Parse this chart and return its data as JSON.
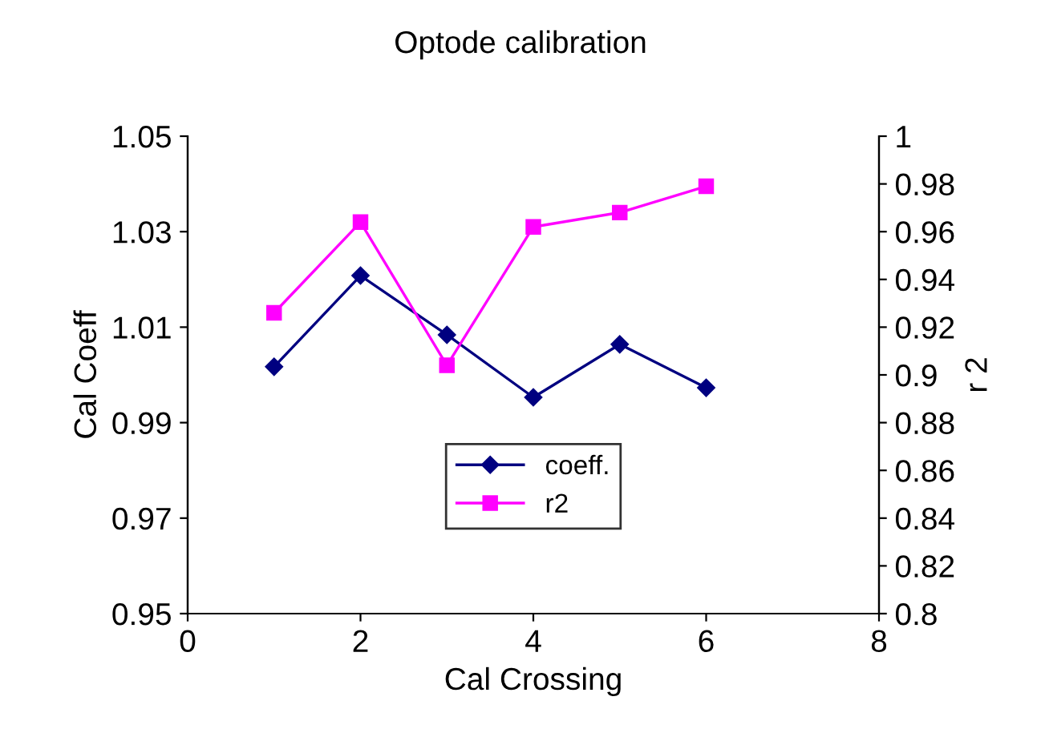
{
  "chart_data": {
    "type": "line",
    "title": "Optode calibration",
    "xlabel": "Cal Crossing",
    "ylabel": "Cal Coeff",
    "y2label": "r 2",
    "x": [
      1,
      2,
      3,
      4,
      5,
      6
    ],
    "series": [
      {
        "name": "coeff.",
        "color": "#000080",
        "marker": "diamond",
        "values": [
          1.0017,
          1.0208,
          1.0084,
          0.9953,
          1.0064,
          0.9973
        ]
      },
      {
        "name": "r2",
        "color": "#ff00ff",
        "marker": "square",
        "axis": "y2",
        "values": [
          0.926,
          0.964,
          0.904,
          0.962,
          0.968,
          0.979
        ]
      }
    ],
    "xlim": [
      0,
      8
    ],
    "xticks": [
      0,
      2,
      4,
      6,
      8
    ],
    "ylim": [
      0.95,
      1.05
    ],
    "yticks": [
      {
        "value": 0.95,
        "label": "0.95"
      },
      {
        "value": 0.97,
        "label": "0.97"
      },
      {
        "value": 0.99,
        "label": "0.99"
      },
      {
        "value": 1.01,
        "label": "1.01"
      },
      {
        "value": 1.03,
        "label": "1.03"
      },
      {
        "value": 1.05,
        "label": "1.05"
      }
    ],
    "y2lim": [
      0.8,
      1.0
    ],
    "y2ticks": [
      {
        "value": 0.8,
        "label": "0.8"
      },
      0.82,
      0.84,
      0.86,
      0.88,
      {
        "value": 0.9,
        "label": "0.9"
      },
      0.92,
      0.94,
      0.96,
      0.98,
      {
        "value": 1.0,
        "label": "1"
      }
    ],
    "legend": "bottom",
    "grid": false
  }
}
